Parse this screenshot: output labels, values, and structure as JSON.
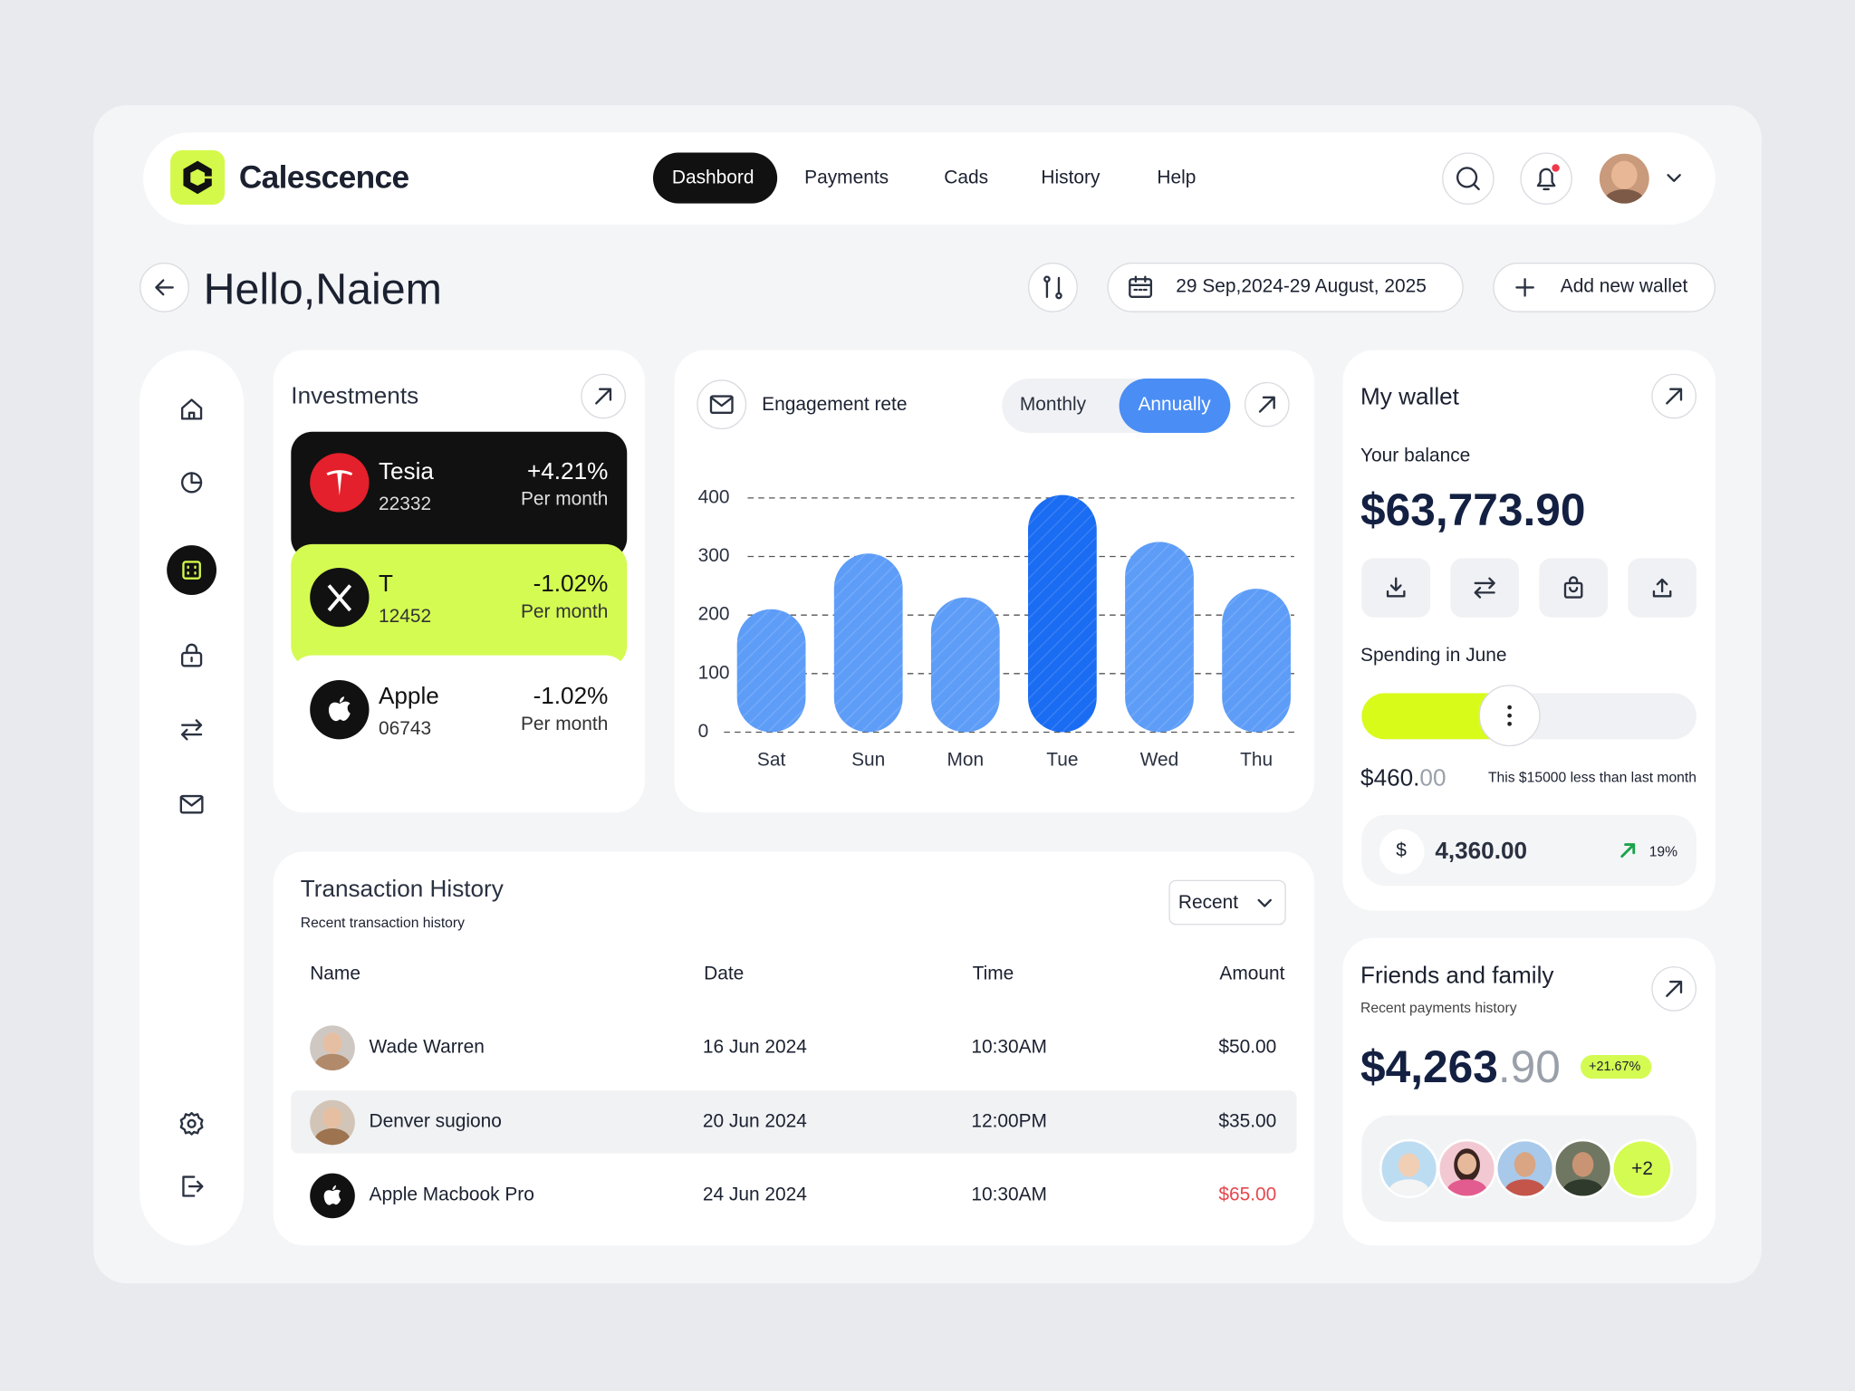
{
  "brand": "Calescence",
  "nav": [
    "Dashbord",
    "Payments",
    "Cads",
    "History",
    "Help"
  ],
  "greeting": "Hello,Naiem",
  "date_range": "29 Sep,2024-29 August, 2025",
  "add_wallet": "Add new wallet",
  "investments": {
    "title": "Investments",
    "items": [
      {
        "name": "Tesia",
        "code": "22332",
        "change": "+4.21%",
        "period": "Per month"
      },
      {
        "name": "T",
        "code": "12452",
        "change": "-1.02%",
        "period": "Per month"
      },
      {
        "name": "Apple",
        "code": "06743",
        "change": "-1.02%",
        "period": "Per month"
      }
    ]
  },
  "chart_data": {
    "type": "bar",
    "title": "Engagement rete",
    "toggle": [
      "Monthly",
      "Annually"
    ],
    "categories": [
      "Sat",
      "Sun",
      "Mon",
      "Tue",
      "Wed",
      "Thu"
    ],
    "values": [
      210,
      305,
      230,
      405,
      325,
      245
    ],
    "colors": [
      "#5e9df7",
      "#5e9df7",
      "#5e9df7",
      "#1a6cf2",
      "#5e9df7",
      "#5e9df7"
    ],
    "ylim": [
      0,
      400
    ],
    "yticks": [
      0,
      100,
      200,
      300,
      400
    ],
    "grid": true
  },
  "wallet": {
    "title": "My wallet",
    "balance_label": "Your balance",
    "balance": "$63,773.90",
    "spending_label": "Spending in June",
    "spending_progress": 44,
    "spending_main": "$460.",
    "spending_cents": "00",
    "spending_note": "This $15000 less than last month",
    "currency": "$",
    "amount": "4,360.00",
    "change": "19%"
  },
  "transactions": {
    "title": "Transaction History",
    "subtitle": "Recent transaction history",
    "filter": "Recent",
    "columns": [
      "Name",
      "Date",
      "Time",
      "Amount"
    ],
    "rows": [
      [
        "Wade Warren",
        "16 Jun 2024",
        "10:30AM",
        "$50.00"
      ],
      [
        "Denver sugiono",
        "20 Jun 2024",
        "12:00PM",
        "$35.00"
      ],
      [
        "Apple Macbook Pro",
        "24 Jun 2024",
        "10:30AM",
        "$65.00"
      ]
    ]
  },
  "friends": {
    "title": "Friends and family",
    "subtitle": "Recent payments history",
    "amount_main": "$4,263",
    "amount_cents": ".90",
    "change": "+21.67%",
    "more": "+2"
  }
}
